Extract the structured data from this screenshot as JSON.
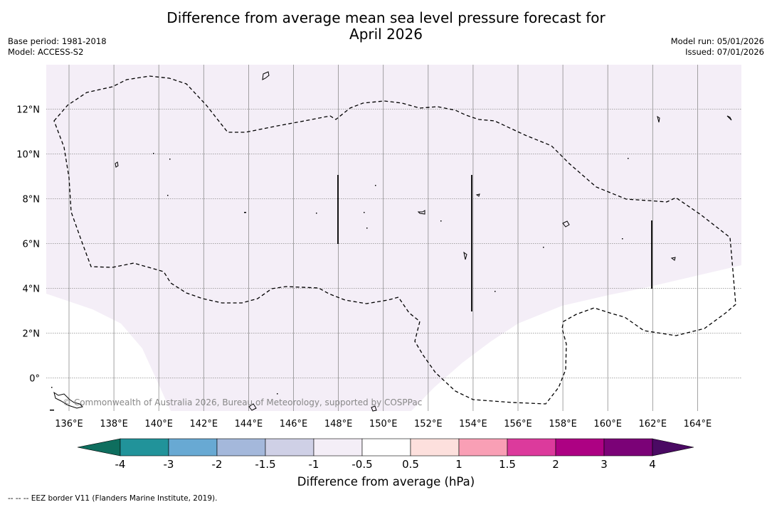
{
  "header": {
    "title_line1": "Difference from average mean sea level pressure forecast for",
    "title_line2": "April 2026",
    "base_period": "Base period: 1981-2018",
    "model": "Model: ACCESS-S2",
    "model_run": "Model run: 05/01/2026",
    "issued": "Issued: 07/01/2026"
  },
  "map": {
    "lon_labels": [
      "136°E",
      "138°E",
      "140°E",
      "142°E",
      "144°E",
      "146°E",
      "148°E",
      "150°E",
      "152°E",
      "154°E",
      "156°E",
      "158°E",
      "160°E",
      "162°E",
      "164°E"
    ],
    "lat_labels": [
      "12°N",
      "10°N",
      "8°N",
      "6°N",
      "4°N",
      "2°N",
      "0°"
    ],
    "credit": "© Commonwealth of Australia 2026, Bureau of Meteorology, supported by COSPPac",
    "anomaly_fill_color": "#f4eef7",
    "eez_color": "#000000"
  },
  "colorbar": {
    "tick_labels": [
      "-4",
      "-3",
      "-2",
      "-1.5",
      "-1",
      "-0.5",
      "0.5",
      "1",
      "1.5",
      "2",
      "3",
      "4"
    ],
    "under_color": "#0e6e5e",
    "over_color": "#4a0a63",
    "colors": [
      "#21939a",
      "#68a9d3",
      "#a4b8db",
      "#cfd0e6",
      "#f4eef7",
      "#ffffff",
      "#fde0dd",
      "#f99fb5",
      "#dc3a9c",
      "#ad0183",
      "#7b0277"
    ],
    "label": "Difference from average (hPa)"
  },
  "footer": {
    "eez_legend": "--  --  -- EEZ border V11 (Flanders Marine Institute, 2019)."
  }
}
